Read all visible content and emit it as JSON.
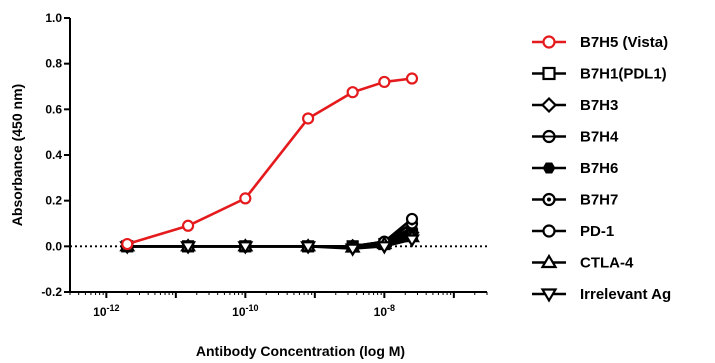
{
  "chart_data": {
    "type": "line",
    "xlabel": "Antibody Concentration (log M)",
    "ylabel": "Absorbance (450 nm)",
    "xscale": "log",
    "xlim": [
      3e-13,
      3e-07
    ],
    "ylim": [
      -0.2,
      1.0
    ],
    "yticks": [
      -0.2,
      0.0,
      0.2,
      0.4,
      0.6,
      0.8,
      1.0
    ],
    "ytick_labels": [
      "-0.2",
      "0.0",
      "0.2",
      "0.4",
      "0.6",
      "0.8",
      "1.0"
    ],
    "xticks": [
      {
        "value": 1e-12,
        "base": "10",
        "exp": "-12"
      },
      {
        "value": 1e-10,
        "base": "10",
        "exp": "-10"
      },
      {
        "value": 1e-08,
        "base": "10",
        "exp": "-8"
      }
    ],
    "baseline": 0.0,
    "legend_position": "right",
    "x": [
      2e-12,
      1.5e-11,
      1e-10,
      8e-10,
      3.5e-09,
      1e-08,
      2.5e-08
    ],
    "series": [
      {
        "name": "B7H5 (Vista)",
        "color": "#e41a1c",
        "marker": "circle-open",
        "values": [
          0.01,
          0.09,
          0.21,
          0.56,
          0.675,
          0.72,
          0.735
        ]
      },
      {
        "name": "B7H1(PDL1)",
        "color": "#000000",
        "marker": "square-open",
        "values": [
          0.0,
          0.0,
          0.0,
          0.0,
          0.0,
          0.01,
          0.05
        ]
      },
      {
        "name": "B7H3",
        "color": "#000000",
        "marker": "diamond-open",
        "values": [
          0.0,
          0.0,
          0.0,
          0.0,
          0.0,
          0.01,
          0.06
        ]
      },
      {
        "name": "B7H4",
        "color": "#000000",
        "marker": "circle-halfline",
        "values": [
          0.0,
          0.0,
          0.0,
          0.0,
          0.0,
          0.01,
          0.07
        ]
      },
      {
        "name": "B7H6",
        "color": "#000000",
        "marker": "hexagon-filled",
        "values": [
          0.0,
          0.0,
          0.0,
          0.0,
          0.0,
          0.02,
          0.08
        ]
      },
      {
        "name": "B7H7",
        "color": "#000000",
        "marker": "circle-dotted",
        "values": [
          0.0,
          0.0,
          0.0,
          0.0,
          0.0,
          0.02,
          0.1
        ]
      },
      {
        "name": "PD-1",
        "color": "#000000",
        "marker": "circle-open",
        "values": [
          0.0,
          0.0,
          0.0,
          0.0,
          0.0,
          0.02,
          0.12
        ]
      },
      {
        "name": "CTLA-4",
        "color": "#000000",
        "marker": "triangle-up-open",
        "values": [
          0.0,
          0.0,
          0.0,
          0.0,
          -0.005,
          0.01,
          0.04
        ]
      },
      {
        "name": "Irrelevant Ag",
        "color": "#000000",
        "marker": "triangle-down-open",
        "values": [
          0.0,
          0.0,
          0.0,
          0.0,
          -0.01,
          0.0,
          0.03
        ]
      }
    ]
  }
}
